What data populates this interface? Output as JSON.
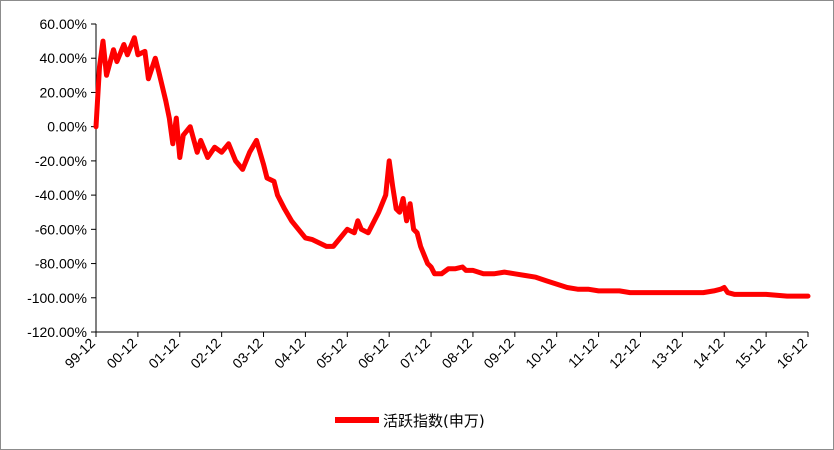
{
  "chart_data": {
    "type": "line",
    "title": "",
    "xlabel": "",
    "ylabel": "",
    "y_unit": "%",
    "ylim": [
      -120,
      60
    ],
    "y_ticks": [
      60,
      40,
      20,
      0,
      -20,
      -40,
      -60,
      -80,
      -100,
      -120
    ],
    "y_tick_labels": [
      "60.00%",
      "40.00%",
      "20.00%",
      "0.00%",
      "-20.00%",
      "-40.00%",
      "-60.00%",
      "-80.00%",
      "-100.00%",
      "-120.00%"
    ],
    "x_tick_labels": [
      "99-12",
      "00-12",
      "01-12",
      "02-12",
      "03-12",
      "04-12",
      "05-12",
      "06-12",
      "07-12",
      "08-12",
      "09-12",
      "10-12",
      "11-12",
      "12-12",
      "13-12",
      "14-12",
      "15-12",
      "16-12"
    ],
    "legend_position": "bottom-center",
    "grid": false,
    "series": [
      {
        "name": "活跃指数(申万)",
        "color": "#ff0000",
        "x": [
          "99-12",
          "00-01",
          "00-02",
          "00-03",
          "00-05",
          "00-06",
          "00-08",
          "00-09",
          "00-11",
          "00-12",
          "01-02",
          "01-03",
          "01-05",
          "01-06",
          "01-08",
          "01-09",
          "01-10",
          "01-11",
          "01-12",
          "02-01",
          "02-03",
          "02-05",
          "02-06",
          "02-08",
          "02-10",
          "02-12",
          "03-02",
          "03-04",
          "03-06",
          "03-08",
          "03-10",
          "03-12",
          "04-01",
          "04-03",
          "04-04",
          "04-06",
          "04-08",
          "04-10",
          "04-12",
          "05-02",
          "05-04",
          "05-06",
          "05-08",
          "05-10",
          "05-12",
          "06-02",
          "06-03",
          "06-04",
          "06-06",
          "06-07",
          "06-09",
          "06-11",
          "06-12",
          "07-01",
          "07-02",
          "07-03",
          "07-04",
          "07-05",
          "07-06",
          "07-07",
          "07-08",
          "07-09",
          "07-10",
          "07-11",
          "07-12",
          "08-01",
          "08-03",
          "08-05",
          "08-07",
          "08-09",
          "08-10",
          "08-11",
          "08-12",
          "09-03",
          "09-06",
          "09-09",
          "09-12",
          "10-03",
          "10-06",
          "10-09",
          "10-12",
          "11-03",
          "11-06",
          "11-09",
          "11-12",
          "12-03",
          "12-06",
          "12-09",
          "12-12",
          "13-06",
          "13-12",
          "14-06",
          "14-09",
          "14-11",
          "14-12",
          "15-01",
          "15-03",
          "15-06",
          "15-09",
          "15-12",
          "16-06",
          "16-12"
        ],
        "values": [
          0,
          35,
          50,
          30,
          45,
          38,
          48,
          42,
          52,
          42,
          44,
          28,
          40,
          32,
          15,
          5,
          -10,
          5,
          -18,
          -5,
          0,
          -15,
          -8,
          -18,
          -12,
          -15,
          -10,
          -20,
          -25,
          -15,
          -8,
          -22,
          -30,
          -32,
          -40,
          -48,
          -55,
          -60,
          -65,
          -66,
          -68,
          -70,
          -70,
          -65,
          -60,
          -62,
          -55,
          -60,
          -62,
          -58,
          -50,
          -40,
          -20,
          -35,
          -48,
          -50,
          -42,
          -55,
          -45,
          -60,
          -62,
          -70,
          -75,
          -80,
          -82,
          -86,
          -86,
          -83,
          -83,
          -82,
          -84,
          -84,
          -84,
          -86,
          -86,
          -85,
          -86,
          -87,
          -88,
          -90,
          -92,
          -94,
          -95,
          -95,
          -96,
          -96,
          -96,
          -97,
          -97,
          -97,
          -97,
          -97,
          -96,
          -95,
          -94,
          -97,
          -98,
          -98,
          -98,
          -98,
          -99,
          -99
        ]
      }
    ]
  }
}
